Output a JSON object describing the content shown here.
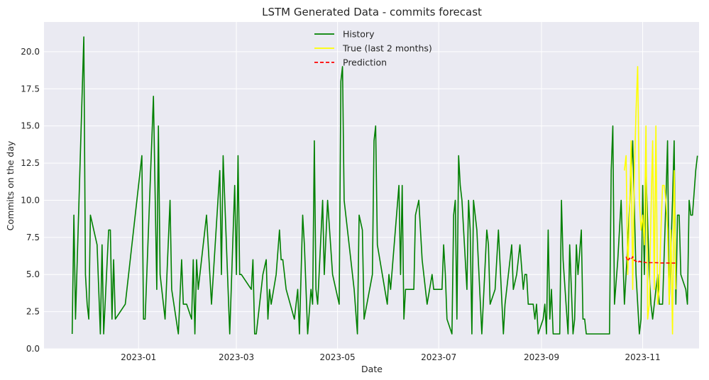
{
  "chart_data": {
    "type": "line",
    "title": "LSTM Generated Data - commits forecast",
    "xlabel": "Date",
    "ylabel": "Commits on the day",
    "xlim": [
      "2022-11-05",
      "2023-12-05"
    ],
    "ylim": [
      0,
      22
    ],
    "grid": true,
    "legend_position": "top-center",
    "x_ticks": [
      "2023-01-01",
      "2023-03-01",
      "2023-05-01",
      "2023-07-01",
      "2023-09-01",
      "2023-11-01"
    ],
    "x_tick_labels": [
      "2023-01",
      "2023-03",
      "2023-05",
      "2023-07",
      "2023-09",
      "2023-11"
    ],
    "y_ticks": [
      0,
      2.5,
      5,
      7.5,
      10,
      12.5,
      15,
      17.5,
      20
    ],
    "y_tick_labels": [
      "0.0",
      "2.5",
      "5.0",
      "7.5",
      "10.0",
      "12.5",
      "15.0",
      "17.5",
      "20.0"
    ],
    "series": [
      {
        "name": "History",
        "color": "#008000",
        "style": "solid",
        "points": [
          [
            "2022-11-22",
            1
          ],
          [
            "2022-11-23",
            9
          ],
          [
            "2022-11-24",
            2
          ],
          [
            "2022-11-29",
            21
          ],
          [
            "2022-11-30",
            5
          ],
          [
            "2022-12-01",
            3
          ],
          [
            "2022-12-02",
            2
          ],
          [
            "2022-12-03",
            9
          ],
          [
            "2022-12-07",
            7
          ],
          [
            "2022-12-09",
            1
          ],
          [
            "2022-12-10",
            7
          ],
          [
            "2022-12-11",
            1
          ],
          [
            "2022-12-14",
            8
          ],
          [
            "2022-12-15",
            8
          ],
          [
            "2022-12-16",
            2
          ],
          [
            "2022-12-17",
            6
          ],
          [
            "2022-12-18",
            2
          ],
          [
            "2022-12-24",
            3
          ],
          [
            "2023-01-03",
            13
          ],
          [
            "2023-01-04",
            2
          ],
          [
            "2023-01-05",
            2
          ],
          [
            "2023-01-10",
            17
          ],
          [
            "2023-01-12",
            4
          ],
          [
            "2023-01-13",
            15
          ],
          [
            "2023-01-14",
            5
          ],
          [
            "2023-01-17",
            2
          ],
          [
            "2023-01-20",
            10
          ],
          [
            "2023-01-21",
            4
          ],
          [
            "2023-01-25",
            1
          ],
          [
            "2023-01-27",
            6
          ],
          [
            "2023-01-28",
            3
          ],
          [
            "2023-01-30",
            3
          ],
          [
            "2023-02-02",
            2
          ],
          [
            "2023-02-03",
            6
          ],
          [
            "2023-02-04",
            1
          ],
          [
            "2023-02-05",
            6
          ],
          [
            "2023-02-06",
            4
          ],
          [
            "2023-02-11",
            9
          ],
          [
            "2023-02-14",
            3
          ],
          [
            "2023-02-19",
            12
          ],
          [
            "2023-02-20",
            5
          ],
          [
            "2023-02-21",
            13
          ],
          [
            "2023-02-22",
            10
          ],
          [
            "2023-02-25",
            1
          ],
          [
            "2023-02-28",
            11
          ],
          [
            "2023-03-01",
            5
          ],
          [
            "2023-03-02",
            13
          ],
          [
            "2023-03-03",
            5
          ],
          [
            "2023-03-04",
            5
          ],
          [
            "2023-03-10",
            4
          ],
          [
            "2023-03-11",
            6
          ],
          [
            "2023-03-12",
            1
          ],
          [
            "2023-03-13",
            1
          ],
          [
            "2023-03-17",
            5
          ],
          [
            "2023-03-19",
            6
          ],
          [
            "2023-03-20",
            2
          ],
          [
            "2023-03-21",
            4
          ],
          [
            "2023-03-22",
            3
          ],
          [
            "2023-03-25",
            5
          ],
          [
            "2023-03-27",
            8
          ],
          [
            "2023-03-28",
            6
          ],
          [
            "2023-03-29",
            6
          ],
          [
            "2023-03-31",
            4
          ],
          [
            "2023-04-05",
            2
          ],
          [
            "2023-04-07",
            4
          ],
          [
            "2023-04-08",
            1
          ],
          [
            "2023-04-10",
            9
          ],
          [
            "2023-04-11",
            7
          ],
          [
            "2023-04-13",
            1
          ],
          [
            "2023-04-15",
            4
          ],
          [
            "2023-04-16",
            3
          ],
          [
            "2023-04-17",
            14
          ],
          [
            "2023-04-18",
            4
          ],
          [
            "2023-04-19",
            3
          ],
          [
            "2023-04-22",
            10
          ],
          [
            "2023-04-23",
            5
          ],
          [
            "2023-04-25",
            10
          ],
          [
            "2023-04-28",
            5
          ],
          [
            "2023-05-02",
            3
          ],
          [
            "2023-05-03",
            18
          ],
          [
            "2023-05-04",
            19
          ],
          [
            "2023-05-05",
            10
          ],
          [
            "2023-05-09",
            6
          ],
          [
            "2023-05-11",
            4
          ],
          [
            "2023-05-13",
            1
          ],
          [
            "2023-05-14",
            9
          ],
          [
            "2023-05-16",
            8
          ],
          [
            "2023-05-17",
            2
          ],
          [
            "2023-05-22",
            5
          ],
          [
            "2023-05-23",
            14
          ],
          [
            "2023-05-24",
            15
          ],
          [
            "2023-05-25",
            7
          ],
          [
            "2023-05-31",
            3
          ],
          [
            "2023-06-01",
            5
          ],
          [
            "2023-06-02",
            4
          ],
          [
            "2023-06-07",
            11
          ],
          [
            "2023-06-08",
            5
          ],
          [
            "2023-06-09",
            11
          ],
          [
            "2023-06-10",
            2
          ],
          [
            "2023-06-11",
            4
          ],
          [
            "2023-06-16",
            4
          ],
          [
            "2023-06-17",
            9
          ],
          [
            "2023-06-19",
            10
          ],
          [
            "2023-06-21",
            6
          ],
          [
            "2023-06-24",
            3
          ],
          [
            "2023-06-27",
            5
          ],
          [
            "2023-06-28",
            4
          ],
          [
            "2023-07-03",
            4
          ],
          [
            "2023-07-04",
            7
          ],
          [
            "2023-07-05",
            5
          ],
          [
            "2023-07-06",
            2
          ],
          [
            "2023-07-09",
            1
          ],
          [
            "2023-07-10",
            9
          ],
          [
            "2023-07-11",
            10
          ],
          [
            "2023-07-12",
            2
          ],
          [
            "2023-07-13",
            13
          ],
          [
            "2023-07-14",
            11
          ],
          [
            "2023-07-15",
            10
          ],
          [
            "2023-07-18",
            4
          ],
          [
            "2023-07-19",
            10
          ],
          [
            "2023-07-20",
            8
          ],
          [
            "2023-07-21",
            1
          ],
          [
            "2023-07-22",
            10
          ],
          [
            "2023-07-24",
            8
          ],
          [
            "2023-07-27",
            1
          ],
          [
            "2023-07-30",
            8
          ],
          [
            "2023-07-31",
            7
          ],
          [
            "2023-08-01",
            3
          ],
          [
            "2023-08-04",
            4
          ],
          [
            "2023-08-06",
            8
          ],
          [
            "2023-08-09",
            1
          ],
          [
            "2023-08-10",
            3
          ],
          [
            "2023-08-14",
            7
          ],
          [
            "2023-08-15",
            4
          ],
          [
            "2023-08-17",
            5
          ],
          [
            "2023-08-19",
            7
          ],
          [
            "2023-08-21",
            4
          ],
          [
            "2023-08-22",
            5
          ],
          [
            "2023-08-23",
            5
          ],
          [
            "2023-08-24",
            3
          ],
          [
            "2023-08-27",
            3
          ],
          [
            "2023-08-28",
            2
          ],
          [
            "2023-08-29",
            3
          ],
          [
            "2023-08-30",
            1
          ],
          [
            "2023-09-02",
            2
          ],
          [
            "2023-09-03",
            3
          ],
          [
            "2023-09-04",
            1
          ],
          [
            "2023-09-05",
            8
          ],
          [
            "2023-09-06",
            2
          ],
          [
            "2023-09-07",
            4
          ],
          [
            "2023-09-08",
            1
          ],
          [
            "2023-09-11",
            1
          ],
          [
            "2023-09-12",
            1
          ],
          [
            "2023-09-13",
            10
          ],
          [
            "2023-09-14",
            6
          ],
          [
            "2023-09-17",
            1
          ],
          [
            "2023-09-18",
            7
          ],
          [
            "2023-09-19",
            4
          ],
          [
            "2023-09-20",
            1
          ],
          [
            "2023-09-21",
            2
          ],
          [
            "2023-09-22",
            7
          ],
          [
            "2023-09-23",
            5
          ],
          [
            "2023-09-25",
            8
          ],
          [
            "2023-09-26",
            2
          ],
          [
            "2023-09-27",
            2
          ],
          [
            "2023-09-28",
            1
          ],
          [
            "2023-10-01",
            1
          ],
          [
            "2023-10-06",
            1
          ],
          [
            "2023-10-12",
            1
          ],
          [
            "2023-10-13",
            12
          ],
          [
            "2023-10-14",
            15
          ],
          [
            "2023-10-15",
            3
          ],
          [
            "2023-10-17",
            6
          ],
          [
            "2023-10-19",
            10
          ],
          [
            "2023-10-21",
            3
          ],
          [
            "2023-10-23",
            7
          ],
          [
            "2023-10-26",
            14
          ],
          [
            "2023-10-28",
            5
          ],
          [
            "2023-10-30",
            1
          ],
          [
            "2023-10-31",
            2
          ],
          [
            "2023-11-01",
            11
          ],
          [
            "2023-11-02",
            5
          ],
          [
            "2023-11-03",
            12
          ],
          [
            "2023-11-05",
            5
          ],
          [
            "2023-11-06",
            3
          ],
          [
            "2023-11-07",
            2
          ],
          [
            "2023-11-09",
            4
          ],
          [
            "2023-11-10",
            5
          ],
          [
            "2023-11-11",
            3
          ],
          [
            "2023-11-12",
            3
          ],
          [
            "2023-11-13",
            3
          ],
          [
            "2023-11-15",
            10
          ],
          [
            "2023-11-16",
            14
          ],
          [
            "2023-11-17",
            3
          ],
          [
            "2023-11-19",
            10
          ],
          [
            "2023-11-20",
            14
          ],
          [
            "2023-11-21",
            3
          ],
          [
            "2023-11-22",
            9
          ],
          [
            "2023-11-23",
            9
          ],
          [
            "2023-11-24",
            5
          ],
          [
            "2023-11-27",
            4
          ],
          [
            "2023-11-28",
            3
          ],
          [
            "2023-11-29",
            10
          ],
          [
            "2023-11-30",
            9
          ],
          [
            "2023-12-01",
            9
          ],
          [
            "2023-12-03",
            12
          ],
          [
            "2023-12-04",
            13
          ]
        ]
      },
      {
        "name": "True (last 2 months)",
        "color": "#ffff00",
        "style": "solid",
        "points": [
          [
            "2023-10-21",
            12
          ],
          [
            "2023-10-22",
            13
          ],
          [
            "2023-10-23",
            5
          ],
          [
            "2023-10-24",
            9
          ],
          [
            "2023-10-25",
            14
          ],
          [
            "2023-10-26",
            4
          ],
          [
            "2023-10-27",
            12
          ],
          [
            "2023-10-28",
            16
          ],
          [
            "2023-10-29",
            19
          ],
          [
            "2023-10-30",
            10
          ],
          [
            "2023-10-31",
            8
          ],
          [
            "2023-11-01",
            9
          ],
          [
            "2023-11-02",
            7
          ],
          [
            "2023-11-03",
            15
          ],
          [
            "2023-11-04",
            2
          ],
          [
            "2023-11-05",
            3
          ],
          [
            "2023-11-06",
            9
          ],
          [
            "2023-11-07",
            14
          ],
          [
            "2023-11-08",
            4
          ],
          [
            "2023-11-09",
            15
          ],
          [
            "2023-11-10",
            3
          ],
          [
            "2023-11-11",
            4
          ],
          [
            "2023-11-12",
            8
          ],
          [
            "2023-11-13",
            11
          ],
          [
            "2023-11-14",
            11
          ],
          [
            "2023-11-15",
            10
          ],
          [
            "2023-11-16",
            8
          ],
          [
            "2023-11-17",
            3
          ],
          [
            "2023-11-18",
            8
          ],
          [
            "2023-11-19",
            1
          ],
          [
            "2023-11-20",
            12
          ],
          [
            "2023-11-21",
            4
          ]
        ]
      },
      {
        "name": "Prediction",
        "color": "#ff0000",
        "style": "dashed",
        "points": [
          [
            "2023-10-22",
            6.2
          ],
          [
            "2023-10-23",
            5.9
          ],
          [
            "2023-10-24",
            6.1
          ],
          [
            "2023-10-25",
            6.0
          ],
          [
            "2023-10-26",
            6.2
          ],
          [
            "2023-10-27",
            5.95
          ],
          [
            "2023-10-28",
            5.9
          ],
          [
            "2023-10-29",
            5.8
          ],
          [
            "2023-10-30",
            5.9
          ],
          [
            "2023-10-31",
            5.85
          ],
          [
            "2023-11-01",
            5.85
          ],
          [
            "2023-11-03",
            5.8
          ],
          [
            "2023-11-06",
            5.8
          ],
          [
            "2023-11-09",
            5.8
          ],
          [
            "2023-11-12",
            5.78
          ],
          [
            "2023-11-15",
            5.78
          ],
          [
            "2023-11-18",
            5.77
          ],
          [
            "2023-11-21",
            5.77
          ]
        ]
      }
    ]
  }
}
